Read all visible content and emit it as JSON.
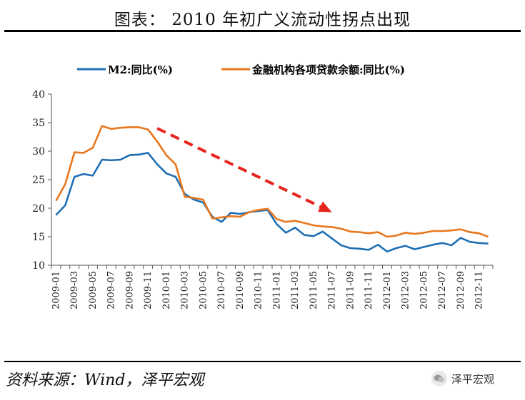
{
  "page": {
    "title": "图表： 2010 年初广义流动性拐点出现",
    "source": "资料来源：Wind，泽平宏观",
    "watermark": "泽平宏观"
  },
  "colors": {
    "m2": "#1F6FB5",
    "loan": "#E8771E",
    "arrow": "#E8241E",
    "axis": "#555555"
  },
  "chart_data": {
    "type": "line",
    "title": "",
    "xlabel": "",
    "ylabel": "",
    "ylim": [
      10,
      40
    ],
    "yticks": [
      10,
      15,
      20,
      25,
      30,
      35,
      40
    ],
    "grid": false,
    "legend_position": "top",
    "x": [
      "2009-01",
      "2009-02",
      "2009-03",
      "2009-04",
      "2009-05",
      "2009-06",
      "2009-07",
      "2009-08",
      "2009-09",
      "2009-10",
      "2009-11",
      "2009-12",
      "2010-01",
      "2010-02",
      "2010-03",
      "2010-04",
      "2010-05",
      "2010-06",
      "2010-07",
      "2010-08",
      "2010-09",
      "2010-10",
      "2010-11",
      "2010-12",
      "2011-01",
      "2011-02",
      "2011-03",
      "2011-04",
      "2011-05",
      "2011-06",
      "2011-07",
      "2011-08",
      "2011-09",
      "2011-10",
      "2011-11",
      "2011-12",
      "2012-01",
      "2012-02",
      "2012-03",
      "2012-04",
      "2012-05",
      "2012-06",
      "2012-07",
      "2012-08",
      "2012-09",
      "2012-10",
      "2012-11",
      "2012-12"
    ],
    "xtick_labels": [
      "2009-01",
      "2009-03",
      "2009-05",
      "2009-07",
      "2009-09",
      "2009-11",
      "2010-01",
      "2010-03",
      "2010-05",
      "2010-07",
      "2010-09",
      "2010-11",
      "2011-01",
      "2011-03",
      "2011-05",
      "2011-07",
      "2011-09",
      "2011-11",
      "2012-01",
      "2012-03",
      "2012-05",
      "2012-07",
      "2012-09",
      "2012-11"
    ],
    "series": [
      {
        "name": "M2:同比(%)",
        "values": [
          18.8,
          20.5,
          25.5,
          26.0,
          25.7,
          28.5,
          28.4,
          28.5,
          29.3,
          29.4,
          29.7,
          27.7,
          26.1,
          25.5,
          22.5,
          21.5,
          21.0,
          18.5,
          17.6,
          19.2,
          19.0,
          19.3,
          19.5,
          19.7,
          17.2,
          15.7,
          16.6,
          15.3,
          15.1,
          15.9,
          14.7,
          13.5,
          13.0,
          12.9,
          12.7,
          13.6,
          12.4,
          13.0,
          13.4,
          12.8,
          13.2,
          13.6,
          13.9,
          13.5,
          14.8,
          14.1,
          13.9,
          13.8
        ]
      },
      {
        "name": "金融机构各项贷款余额:同比(%)",
        "values": [
          21.3,
          24.2,
          29.8,
          29.7,
          30.6,
          34.4,
          33.9,
          34.1,
          34.2,
          34.2,
          33.8,
          31.7,
          29.3,
          27.7,
          22.0,
          21.8,
          21.5,
          18.2,
          18.4,
          18.6,
          18.5,
          19.3,
          19.7,
          19.9,
          18.1,
          17.6,
          17.8,
          17.4,
          17.0,
          16.8,
          16.7,
          16.4,
          15.9,
          15.8,
          15.6,
          15.8,
          15.0,
          15.2,
          15.7,
          15.5,
          15.7,
          16.0,
          16.0,
          16.1,
          16.3,
          15.8,
          15.6,
          15.0
        ]
      }
    ],
    "annotation": {
      "type": "arrow",
      "from": [
        "2009-12",
        34
      ],
      "to": [
        "2011-07",
        19.3
      ]
    }
  }
}
